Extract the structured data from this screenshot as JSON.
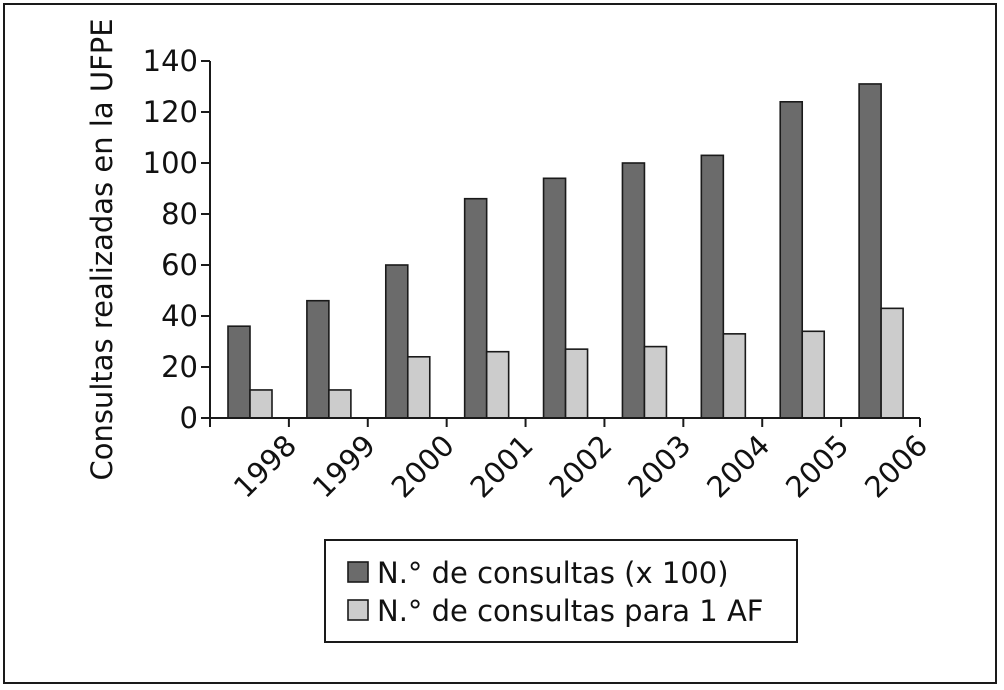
{
  "chart_data": {
    "type": "bar",
    "ylabel": "Consultas realizadas en la UFPE",
    "xlabel": "",
    "categories": [
      "1998",
      "1999",
      "2000",
      "2001",
      "2002",
      "2003",
      "2004",
      "2005",
      "2006"
    ],
    "ylim": [
      0,
      140
    ],
    "yticks": [
      0,
      20,
      40,
      60,
      80,
      100,
      120,
      140
    ],
    "grid": false,
    "legend_position": "bottom-center",
    "series": [
      {
        "name": "N.° de consultas (x 100)",
        "color": "#6b6b6b",
        "values": [
          36,
          46,
          60,
          86,
          94,
          100,
          103,
          124,
          131
        ]
      },
      {
        "name": "N.° de consultas para 1 AF",
        "color": "#cccccc",
        "values": [
          11,
          11,
          24,
          26,
          27,
          28,
          33,
          34,
          43
        ]
      }
    ]
  }
}
